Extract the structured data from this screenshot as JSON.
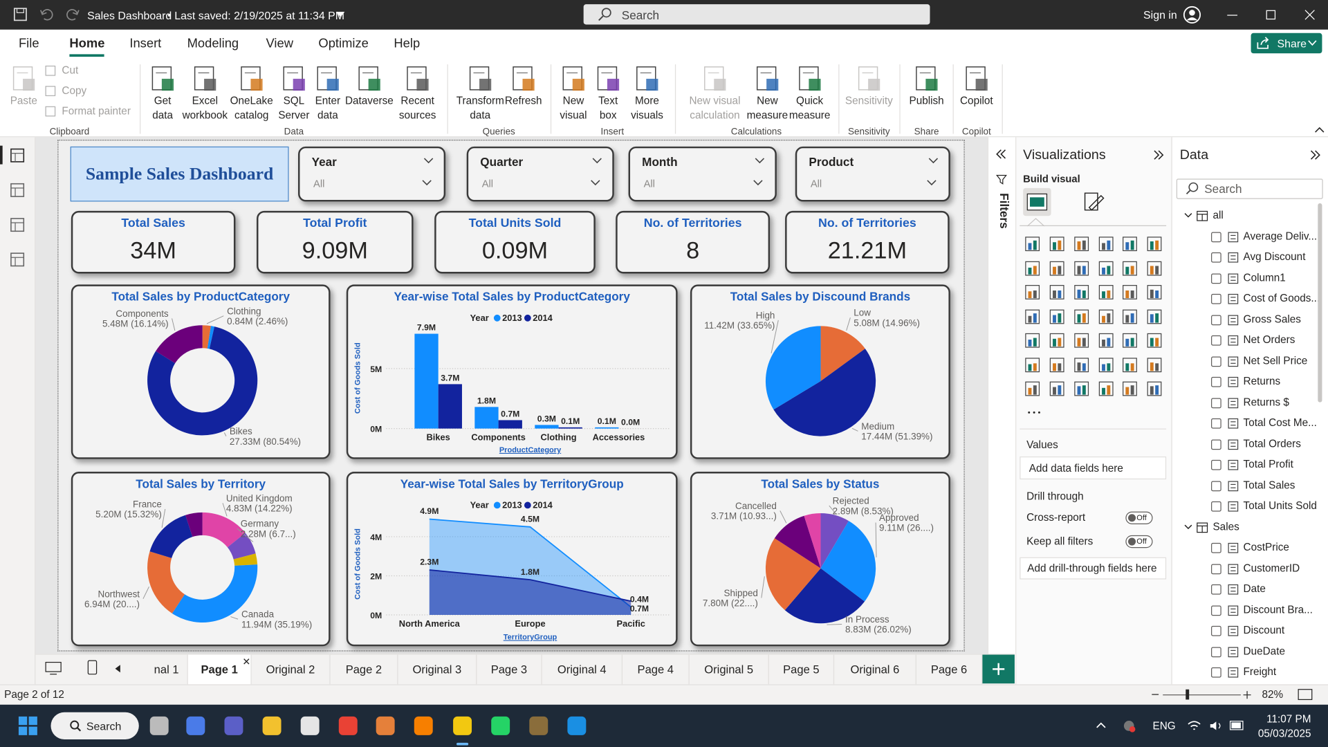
{
  "title_bar": {
    "document": "Sales Dashboard",
    "saved": "Last saved: 2/19/2025 at 11:34 PM",
    "search": "Search",
    "sign_in": "Sign in"
  },
  "menu": {
    "tabs": [
      "File",
      "Home",
      "Insert",
      "Modeling",
      "View",
      "Optimize",
      "Help"
    ],
    "share": "Share"
  },
  "ribbon": {
    "groups": [
      {
        "name": "Clipboard",
        "items": [
          "Paste",
          "Cut",
          "Copy",
          "Format painter"
        ]
      },
      {
        "name": "Data",
        "items": [
          "Get data",
          "Excel workbook",
          "OneLake catalog",
          "SQL Server",
          "Enter data",
          "Dataverse",
          "Recent sources"
        ]
      },
      {
        "name": "Queries",
        "items": [
          "Transform data",
          "Refresh"
        ]
      },
      {
        "name": "Insert",
        "items": [
          "New visual",
          "Text box",
          "More visuals"
        ]
      },
      {
        "name": "Calculations",
        "items": [
          "New visual calculation",
          "New measure",
          "Quick measure"
        ]
      },
      {
        "name": "Sensitivity",
        "items": [
          "Sensitivity"
        ]
      },
      {
        "name": "Share",
        "items": [
          "Publish"
        ]
      },
      {
        "name": "Copilot",
        "items": [
          "Copilot"
        ]
      }
    ]
  },
  "dashboard": {
    "title": "Sample Sales Dashboard",
    "slicers": [
      {
        "label": "Year",
        "value": "All"
      },
      {
        "label": "Quarter",
        "value": "All"
      },
      {
        "label": "Month",
        "value": "All"
      },
      {
        "label": "Product",
        "value": "All"
      }
    ],
    "cards": [
      {
        "title": "Total Sales",
        "value": "34M"
      },
      {
        "title": "Total Profit",
        "value": "9.09M"
      },
      {
        "title": "Total Units Sold",
        "value": "0.09M"
      },
      {
        "title": "No. of Territories",
        "value": "8"
      },
      {
        "title": "No. of Territories",
        "value": "21.21M"
      }
    ],
    "charts": [
      {
        "type": "donut",
        "title": "Total Sales by ProductCategory",
        "categories": [
          "Clothing",
          null,
          "Bikes",
          "Components"
        ],
        "values": [
          0.84,
          0.35,
          27.33,
          5.48
        ],
        "value_labels": [
          "0.84M (2.46%)",
          null,
          "27.33M (80.54%)",
          "5.48M (16.14%)"
        ],
        "colors": [
          "#e66c37",
          "#118dff",
          "#12239e",
          "#6b007b"
        ]
      },
      {
        "type": "bar",
        "title": "Year-wise Total Sales by ProductCategory",
        "legend_title": "Year",
        "y_label": "Cost of Goods Sold",
        "x_label": "ProductCategory",
        "categories": [
          "Bikes",
          "Components",
          "Clothing",
          "Accessories"
        ],
        "series": [
          {
            "name": "2013",
            "color": "#118dff",
            "values": [
              7.9,
              1.8,
              0.3,
              0.1
            ],
            "value_labels": [
              "7.9M",
              "1.8M",
              "0.3M",
              "0.1M"
            ]
          },
          {
            "name": "2014",
            "color": "#12239e",
            "values": [
              3.7,
              0.7,
              0.1,
              0.0
            ],
            "value_labels": [
              "3.7M",
              "0.7M",
              "0.1M",
              "0.0M"
            ]
          }
        ],
        "ylim": [
          0,
          8.4
        ],
        "yticks": [
          {
            "value": 0,
            "label": "0M"
          },
          {
            "value": 5,
            "label": "5M"
          }
        ],
        "grid": true
      },
      {
        "type": "pie",
        "title": "Total Sales by Discound Brands",
        "categories": [
          "Low",
          "Medium",
          "High"
        ],
        "values": [
          5.08,
          17.44,
          11.42
        ],
        "value_labels": [
          "5.08M (14.96%)",
          "17.44M (51.39%)",
          "11.42M (33.65%)"
        ],
        "colors": [
          "#e66c37",
          "#12239e",
          "#118dff"
        ]
      },
      {
        "type": "donut",
        "title": "Total Sales by Territory",
        "categories": [
          "United Kingdom",
          "Germany",
          null,
          "Canada",
          "Northwest",
          "France",
          null
        ],
        "values": [
          4.83,
          2.28,
          1.1,
          11.94,
          6.94,
          5.2,
          1.7
        ],
        "value_labels": [
          "4.83M (14.22%)",
          "2.28M (6.7...)",
          null,
          "11.94M (35.19%)",
          "6.94M (20....)",
          "5.20M (15.32%)",
          null
        ],
        "colors": [
          "#e044a7",
          "#744ec2",
          "#d9b300",
          "#118dff",
          "#e66c37",
          "#12239e",
          "#6b007b"
        ]
      },
      {
        "type": "area",
        "title": "Year-wise Total Sales by TerritoryGroup",
        "legend_title": "Year",
        "y_label": "Cost of Goods Sold",
        "x_label": "TerritoryGroup",
        "categories": [
          "North America",
          "Europe",
          "Pacific"
        ],
        "series": [
          {
            "name": "2013",
            "color": "#118dff",
            "values": [
              4.9,
              4.5,
              0.4
            ],
            "value_labels": [
              "4.9M",
              "4.5M",
              "0.4M"
            ]
          },
          {
            "name": "2014",
            "color": "#12239e",
            "values": [
              2.3,
              1.8,
              0.7
            ],
            "value_labels": [
              "2.3M",
              "1.8M",
              "0.7M"
            ]
          }
        ],
        "ylim": [
          0,
          5.2
        ],
        "yticks": [
          {
            "value": 0,
            "label": "0M"
          },
          {
            "value": 2,
            "label": "2M"
          },
          {
            "value": 4,
            "label": "4M"
          }
        ],
        "grid": true
      },
      {
        "type": "pie",
        "title": "Total Sales by Status",
        "categories": [
          "Rejected",
          "Approved",
          "In Process",
          "Shipped",
          "Cancelled",
          null
        ],
        "values": [
          2.89,
          9.11,
          8.83,
          7.8,
          3.71,
          1.66
        ],
        "value_labels": [
          "2.89M (8.53%)",
          "9.11M (26....)",
          "8.83M (26.02%)",
          "7.80M (22....)",
          "3.71M (10.93...)",
          null
        ],
        "colors": [
          "#744ec2",
          "#118dff",
          "#12239e",
          "#e66c37",
          "#6b007b",
          "#e044a7"
        ]
      }
    ]
  },
  "filters": "Filters",
  "visualizations": {
    "title": "Visualizations",
    "build_visual": "Build visual",
    "values": "Values",
    "add_fields": "Add data fields here",
    "drill_through": "Drill through",
    "cross_report": "Cross-report",
    "cross_report_state": "Off",
    "keep_filters": "Keep all filters",
    "keep_filters_state": "Off",
    "add_drill": "Add drill-through fields here"
  },
  "data_pane": {
    "title": "Data",
    "search": "Search",
    "tables": [
      {
        "name": "all",
        "fields": [
          "Average Deliv...",
          "Avg Discount",
          "Column1",
          "Cost of Goods...",
          "Gross Sales",
          "Net Orders",
          "Net Sell Price",
          "Returns",
          "Returns $",
          "Total Cost Me...",
          "Total Orders",
          "Total Profit",
          "Total Sales",
          "Total Units Sold"
        ]
      },
      {
        "name": "Sales",
        "fields": [
          "CostPrice",
          "CustomerID",
          "Date",
          "Discount Bra...",
          "Discount",
          "DueDate",
          "Freight"
        ]
      }
    ]
  },
  "pages": {
    "tabs": [
      "nal 1",
      "Page 1",
      "Original 2",
      "Page 2",
      "Original 3",
      "Page 3",
      "Original 4",
      "Page 4",
      "Original 5",
      "Page 5",
      "Original 6",
      "Page 6"
    ],
    "active": 1
  },
  "status": {
    "page": "Page 2 of 12",
    "zoom": "82%"
  },
  "taskbar": {
    "search": "Search",
    "language": "ENG",
    "time": "11:07 PM",
    "date": "05/03/2025"
  }
}
